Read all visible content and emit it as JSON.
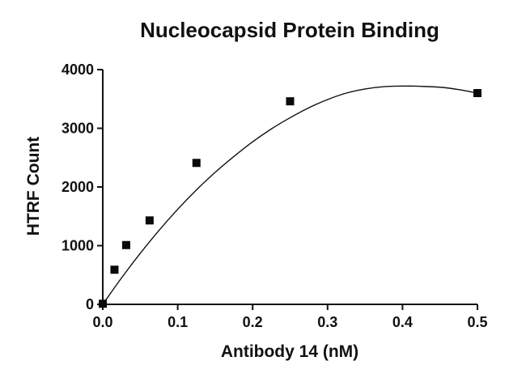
{
  "chart_data": {
    "type": "scatter",
    "title": "Nucleocapsid Protein Binding",
    "xlabel": "Antibody 14 (nM)",
    "ylabel": "HTRF Count",
    "xlim": [
      0,
      0.5
    ],
    "ylim": [
      0,
      4000
    ],
    "x_ticks": [
      "0.0",
      "0.1",
      "0.2",
      "0.3",
      "0.4",
      "0.5"
    ],
    "y_ticks": [
      "0",
      "1000",
      "2000",
      "3000",
      "4000"
    ],
    "grid": false,
    "legend": false,
    "series": [
      {
        "marker": "square",
        "x": [
          0,
          0.0156,
          0.03125,
          0.0625,
          0.125,
          0.25,
          0.5
        ],
        "y": [
          10,
          590,
          1010,
          1430,
          2410,
          3460,
          3600
        ]
      }
    ],
    "fit_curve": {
      "style": "smooth line",
      "x": [
        0,
        0.025,
        0.05,
        0.075,
        0.1,
        0.125,
        0.15,
        0.175,
        0.2,
        0.225,
        0.25,
        0.275,
        0.3,
        0.325,
        0.35,
        0.375,
        0.4,
        0.425,
        0.45,
        0.475,
        0.5
      ],
      "y": [
        0,
        450,
        870,
        1260,
        1620,
        1950,
        2250,
        2520,
        2770,
        2990,
        3180,
        3350,
        3490,
        3600,
        3670,
        3710,
        3720,
        3715,
        3700,
        3660,
        3600
      ]
    }
  }
}
